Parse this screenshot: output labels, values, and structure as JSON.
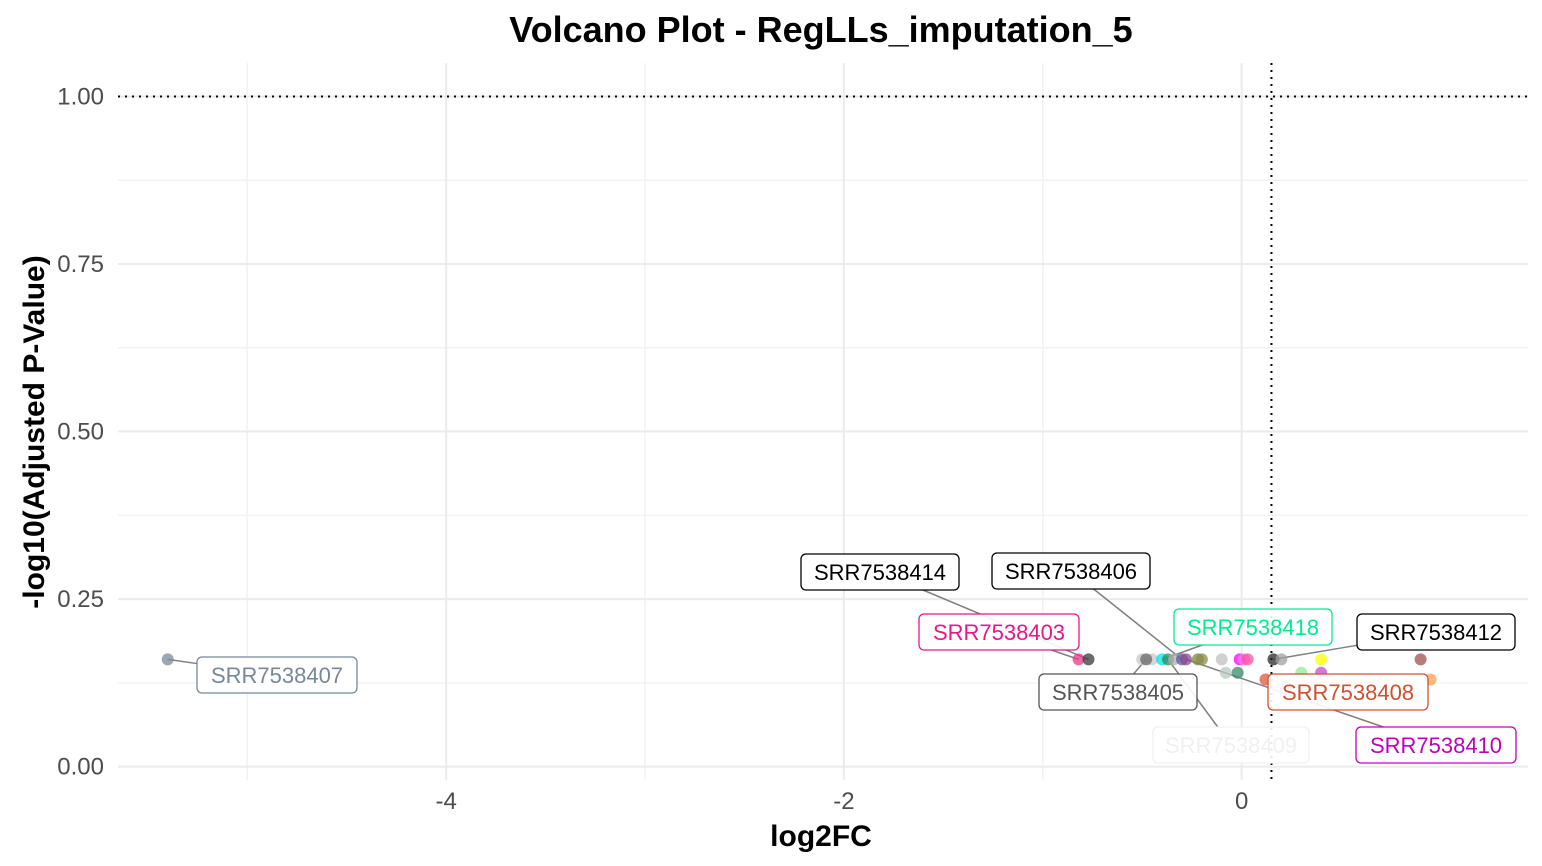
{
  "chart_data": {
    "type": "scatter",
    "title": "Volcano Plot - RegLLs_imputation_5",
    "xlabel": "log2FC",
    "ylabel": "-log10(Adjusted P-Value)",
    "xlim": [
      -5.65,
      1.44
    ],
    "ylim": [
      -0.02,
      1.05
    ],
    "x_ticks": [
      -4,
      -2,
      0
    ],
    "x_tick_labels": [
      "-4",
      "-2",
      "0"
    ],
    "y_ticks": [
      0,
      0.25,
      0.5,
      0.75,
      1.0
    ],
    "y_tick_labels": [
      "0.00",
      "0.25",
      "0.50",
      "0.75",
      "1.00"
    ],
    "grid": true,
    "reference_lines": {
      "x": 0.15,
      "y": 1.0,
      "style": "dotted"
    },
    "points": [
      {
        "x": -5.4,
        "y": 0.16,
        "color": "#7a8a9a"
      },
      {
        "x": -0.82,
        "y": 0.16,
        "color": "#e8378a"
      },
      {
        "x": -0.77,
        "y": 0.16,
        "color": "#3a3a3a"
      },
      {
        "x": -0.5,
        "y": 0.16,
        "color": "#c8c8c8"
      },
      {
        "x": -0.45,
        "y": 0.16,
        "color": "#c8c8c8"
      },
      {
        "x": -0.48,
        "y": 0.16,
        "color": "#6a6a6a"
      },
      {
        "x": -0.4,
        "y": 0.16,
        "color": "#00e5ee"
      },
      {
        "x": -0.37,
        "y": 0.16,
        "color": "#2e8b57"
      },
      {
        "x": -0.34,
        "y": 0.16,
        "color": "#b0b0b0"
      },
      {
        "x": -0.3,
        "y": 0.16,
        "color": "#5a5aa8"
      },
      {
        "x": -0.28,
        "y": 0.16,
        "color": "#8b4a8b"
      },
      {
        "x": -0.22,
        "y": 0.16,
        "color": "#7a8a3a"
      },
      {
        "x": -0.2,
        "y": 0.16,
        "color": "#8b8b4a"
      },
      {
        "x": -0.1,
        "y": 0.16,
        "color": "#c0c0c0"
      },
      {
        "x": -0.08,
        "y": 0.14,
        "color": "#b8c8c0"
      },
      {
        "x": -0.02,
        "y": 0.14,
        "color": "#3a8a6a"
      },
      {
        "x": -0.01,
        "y": 0.16,
        "color": "#ff00ff"
      },
      {
        "x": 0.01,
        "y": 0.16,
        "color": "#ee82ee"
      },
      {
        "x": 0.03,
        "y": 0.16,
        "color": "#ff4fa0"
      },
      {
        "x": 0.12,
        "y": 0.13,
        "color": "#e05a3a"
      },
      {
        "x": 0.16,
        "y": 0.16,
        "color": "#2a2a2a"
      },
      {
        "x": 0.2,
        "y": 0.16,
        "color": "#a0a0a0"
      },
      {
        "x": 0.3,
        "y": 0.14,
        "color": "#90ee90"
      },
      {
        "x": 0.4,
        "y": 0.16,
        "color": "#ffff00"
      },
      {
        "x": 0.4,
        "y": 0.14,
        "color": "#c050c0"
      },
      {
        "x": 0.9,
        "y": 0.16,
        "color": "#a05050"
      },
      {
        "x": 0.95,
        "y": 0.13,
        "color": "#ffa050"
      }
    ],
    "labels": [
      {
        "text": "SRR7538407",
        "color": "#778899",
        "x": -5.4,
        "y": 0.16
      },
      {
        "text": "SRR7538414",
        "color": "#000000",
        "x": -0.77,
        "y": 0.16
      },
      {
        "text": "SRR7538406",
        "color": "#000000",
        "x": -0.3,
        "y": 0.16
      },
      {
        "text": "SRR7538403",
        "color": "#e8178a",
        "x": -0.82,
        "y": 0.16
      },
      {
        "text": "SRR7538418",
        "color": "#00ee90",
        "x": -0.4,
        "y": 0.16
      },
      {
        "text": "SRR7538412",
        "color": "#000000",
        "x": 0.16,
        "y": 0.16
      },
      {
        "text": "SRR7538405",
        "color": "#555555",
        "x": -0.48,
        "y": 0.16
      },
      {
        "text": "SRR7538408",
        "color": "#d05030",
        "x": 0.12,
        "y": 0.13
      },
      {
        "text": "SRR7538410",
        "color": "#c000c0",
        "x": -0.28,
        "y": 0.16
      },
      {
        "text": "SRR7538409",
        "color": "#f0f0f0",
        "x": -0.37,
        "y": 0.16
      }
    ]
  }
}
